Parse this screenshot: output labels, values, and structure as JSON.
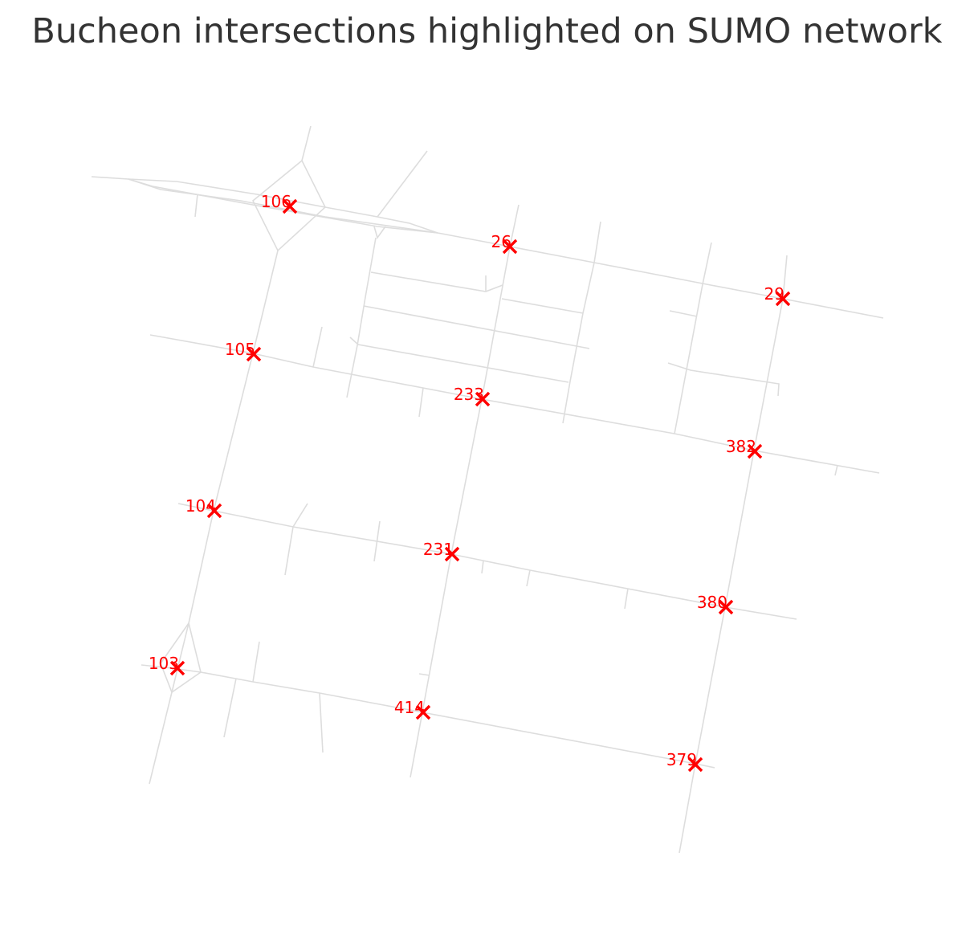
{
  "title": "Bucheon intersections highlighted on SUMO network",
  "colors": {
    "marker": "#ff0000",
    "road": "#dddddd",
    "title": "#333333",
    "background": "#ffffff"
  },
  "intersections": [
    {
      "id": "106"
    },
    {
      "id": "26"
    },
    {
      "id": "29"
    },
    {
      "id": "105"
    },
    {
      "id": "233"
    },
    {
      "id": "382"
    },
    {
      "id": "104"
    },
    {
      "id": "231"
    },
    {
      "id": "380"
    },
    {
      "id": "103"
    },
    {
      "id": "414"
    },
    {
      "id": "379"
    }
  ]
}
